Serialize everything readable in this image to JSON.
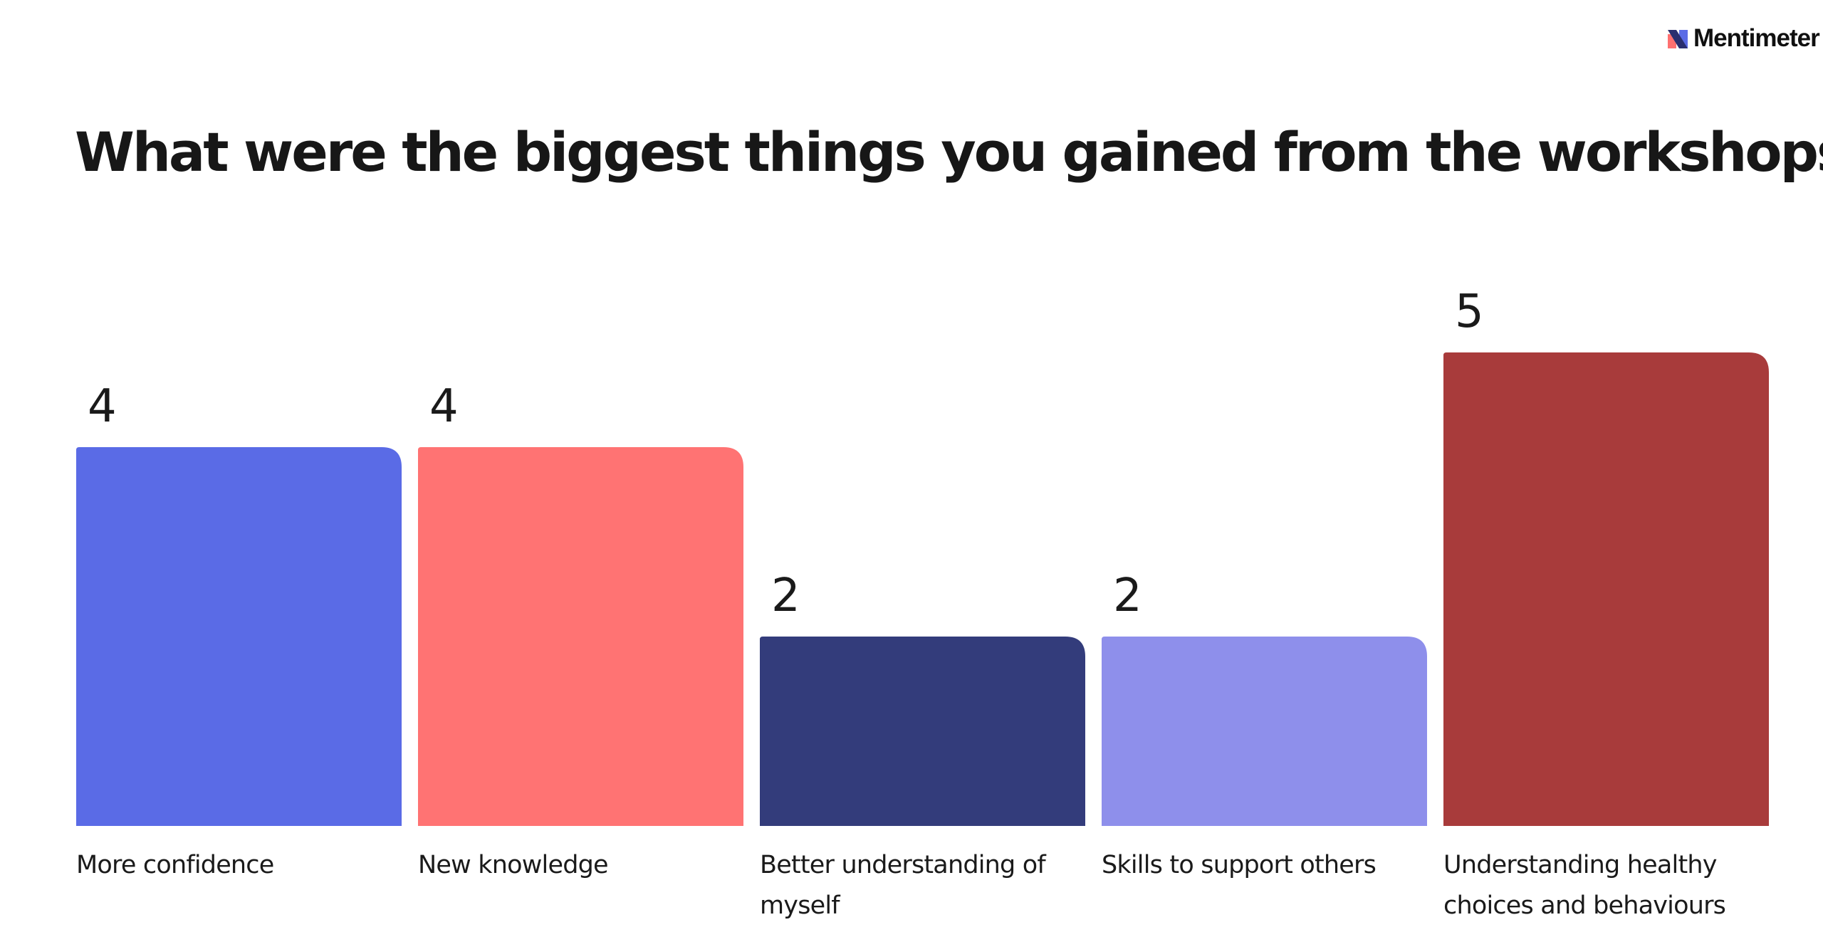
{
  "brand": {
    "name": "Mentimeter",
    "logo_colors": [
      "#5a6be6",
      "#ff7070",
      "#2a2f6f"
    ]
  },
  "question": "What were the biggest things you gained from the workshops?",
  "chart_data": {
    "type": "bar",
    "title": "What were the biggest things you gained from the workshops?",
    "categories": [
      "More confidence",
      "New knowledge",
      "Better understanding of myself",
      "Skills to support others",
      "Understanding healthy choices and behaviours"
    ],
    "values": [
      4,
      4,
      2,
      2,
      5
    ],
    "colors": [
      "#5a6be6",
      "#ff7373",
      "#333c7b",
      "#8e8feb",
      "#a83b3b"
    ],
    "ylim": [
      0,
      5
    ],
    "grid": false,
    "legend": "none",
    "data_labels": true
  }
}
